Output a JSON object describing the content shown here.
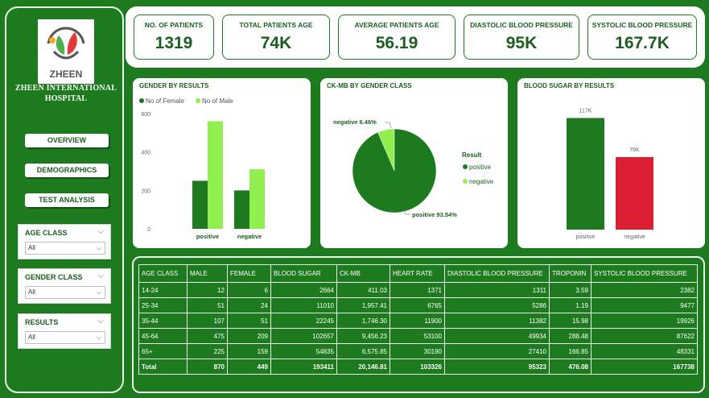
{
  "hospital": {
    "logo_text": "ZHEEN",
    "name_line1": "ZHEEN INTERNATIONAL",
    "name_line2": "HOSPITAL"
  },
  "nav": {
    "overview": "OVERVIEW",
    "demographics": "DEMOGRAPHICS",
    "test_analysis": "TEST ANALYSIS"
  },
  "filters": [
    {
      "label": "AGE CLASS",
      "value": "All"
    },
    {
      "label": "GENDER CLASS",
      "value": "All"
    },
    {
      "label": "RESULTS",
      "value": "All"
    }
  ],
  "kpis": [
    {
      "title": "NO. OF PATIENTS",
      "value": "1319"
    },
    {
      "title": "TOTAL PATIENTS AGE",
      "value": "74K"
    },
    {
      "title": "AVERAGE PATIENTS AGE",
      "value": "56.19"
    },
    {
      "title": "DIASTOLIC BLOOD PRESSURE",
      "value": "95K"
    },
    {
      "title": "SYSTOLIC BLOOD PRESSURE",
      "value": "167.7K"
    }
  ],
  "colors": {
    "dark_green": "#1e7a1e",
    "light_green": "#90ee4f",
    "red": "#dc1e32"
  },
  "chart_data": [
    {
      "type": "bar",
      "title": "GENDER BY RESULTS",
      "categories": [
        "positive",
        "negative"
      ],
      "series": [
        {
          "name": "No of Female",
          "values": [
            250,
            200
          ],
          "color": "#1e7a1e"
        },
        {
          "name": "No of Male",
          "values": [
            560,
            310
          ],
          "color": "#90ee4f"
        }
      ],
      "y_ticks": [
        "0",
        "200",
        "400",
        "600"
      ],
      "ylim": [
        0,
        600
      ],
      "legend": "top-left"
    },
    {
      "type": "pie",
      "title": "CK-MB BY GENDER CLASS",
      "legend_title": "Result",
      "slices": [
        {
          "name": "positive",
          "value": 93.54,
          "label": "positive 93.54%",
          "color": "#1e7a1e"
        },
        {
          "name": "negative",
          "value": 6.46,
          "label": "negative 6.46%",
          "color": "#90ee4f"
        }
      ],
      "legend": "right"
    },
    {
      "type": "bar",
      "title": "BLOOD SUGAR BY RESULTS",
      "categories": [
        "positive",
        "negative"
      ],
      "values": [
        117,
        76
      ],
      "value_labels": [
        "117K",
        "76K"
      ],
      "colors": [
        "#1e7a1e",
        "#dc1e32"
      ],
      "ylim": [
        0,
        125
      ]
    }
  ],
  "table": {
    "headers": [
      "AGE CLASS",
      "MALE",
      "FEMALE",
      "BLOOD SUGAR",
      "CK-MB",
      "HEART RATE",
      "DIASTOLIC BLOOD PRESSURE",
      "TROPONIN",
      "SYSTOLIC BLOOD PRESSURE"
    ],
    "rows": [
      [
        "14-24",
        "12",
        "6",
        "2664",
        "411.03",
        "1371",
        "1311",
        "3.59",
        "2382"
      ],
      [
        "25-34",
        "51",
        "24",
        "11010",
        "1,957.41",
        "6765",
        "5286",
        "1.19",
        "9477"
      ],
      [
        "35-44",
        "107",
        "51",
        "22245",
        "1,746.30",
        "11900",
        "11382",
        "15.98",
        "19926"
      ],
      [
        "45-64",
        "475",
        "209",
        "102657",
        "9,456.23",
        "53100",
        "49934",
        "288.48",
        "87622"
      ],
      [
        "65+",
        "225",
        "159",
        "54835",
        "6,575.85",
        "30190",
        "27410",
        "166.85",
        "48331"
      ]
    ],
    "total": [
      "Total",
      "870",
      "449",
      "193411",
      "20,146.81",
      "103326",
      "95323",
      "476.08",
      "167738"
    ]
  }
}
